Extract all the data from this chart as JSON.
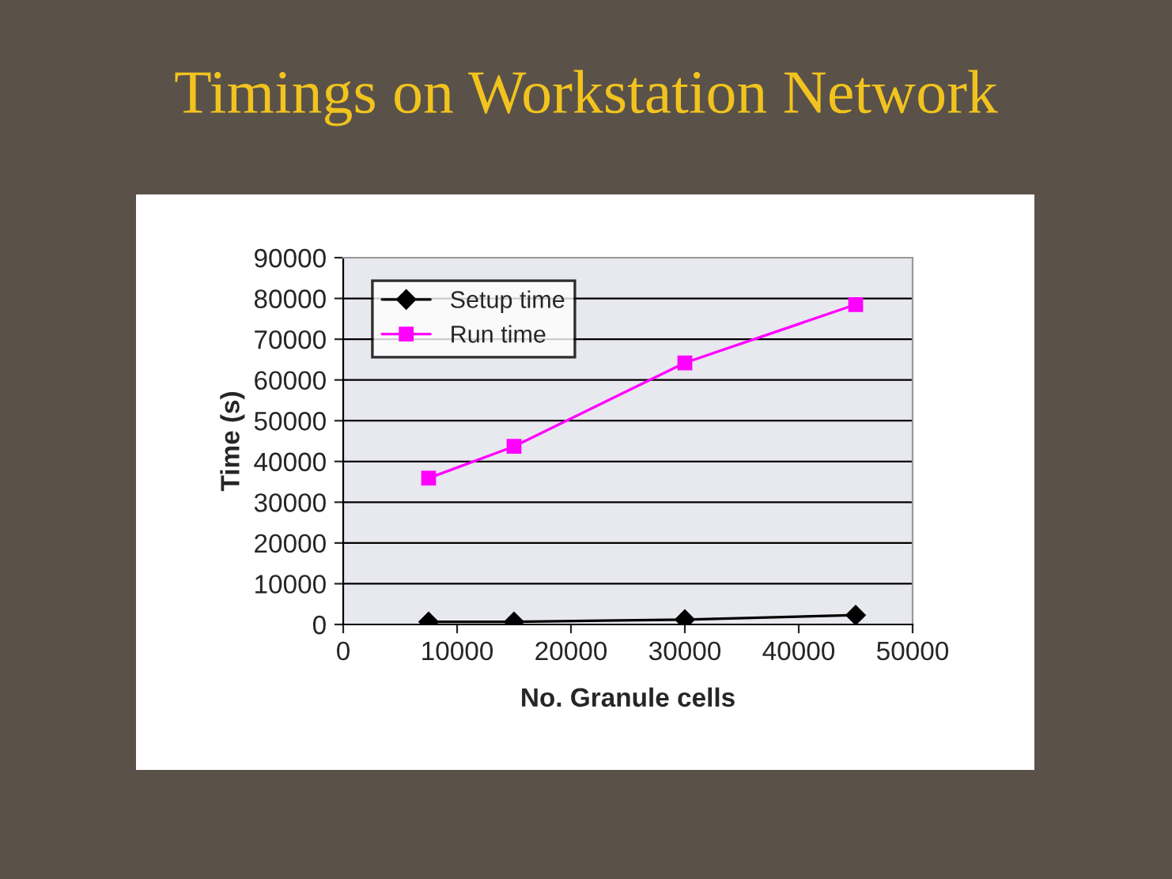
{
  "chart_data": {
    "type": "line",
    "title": "Timings on Workstation Network",
    "xlabel": "No. Granule cells",
    "ylabel": "Time (s)",
    "xlim": [
      0,
      50000
    ],
    "xticks": [
      0,
      10000,
      20000,
      30000,
      40000,
      50000
    ],
    "ylim": [
      0,
      90000
    ],
    "yticks": [
      0,
      10000,
      20000,
      30000,
      40000,
      50000,
      60000,
      70000,
      80000,
      90000
    ],
    "grid": "y",
    "legend": "top left",
    "series": [
      {
        "name": "Setup time",
        "color": "#000000",
        "marker": "diamond",
        "x": [
          7500,
          15000,
          30000,
          45000
        ],
        "values": [
          650,
          650,
          1200,
          2300
        ]
      },
      {
        "name": "Run time",
        "color": "#ff00ff",
        "marker": "square",
        "x": [
          7500,
          15000,
          30000,
          45000
        ],
        "values": [
          35900,
          43700,
          64200,
          78500
        ]
      }
    ]
  }
}
